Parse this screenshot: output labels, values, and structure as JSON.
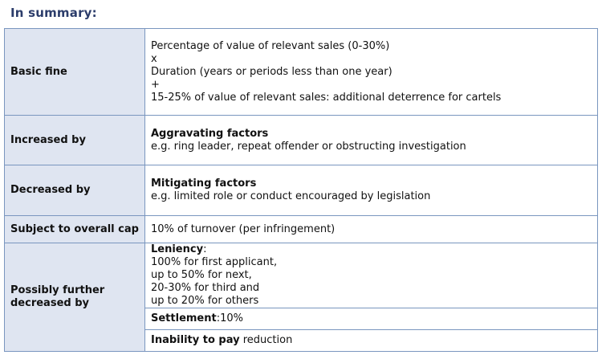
{
  "title": "In summary:",
  "rows": [
    {
      "label": "Basic fine",
      "lines": [
        "Percentage of value of relevant sales (0-30%)",
        "x",
        "Duration (years or periods less than one year)",
        "+",
        "15-25% of value of relevant sales: additional deterrence for cartels"
      ]
    },
    {
      "label": "Increased by",
      "heading": "Aggravating factors",
      "text": "e.g. ring leader, repeat offender or obstructing investigation"
    },
    {
      "label": "Decreased by",
      "heading": "Mitigating factors",
      "text": "e.g. limited role or conduct encouraged by legislation"
    },
    {
      "label": "Subject to overall cap",
      "text": "10% of turnover (per infringement)"
    },
    {
      "label": "Possibly further decreased by",
      "leniency": {
        "heading": "Leniency",
        "suffix": ":",
        "lines": [
          "100% for first applicant,",
          "up to 50% for next,",
          "20-30% for third and",
          "up to 20% for others"
        ]
      },
      "settlement": {
        "heading": "Settlement",
        "text": ":10%"
      },
      "inability": {
        "heading": "Inability to pay",
        "text": " reduction"
      }
    }
  ]
}
